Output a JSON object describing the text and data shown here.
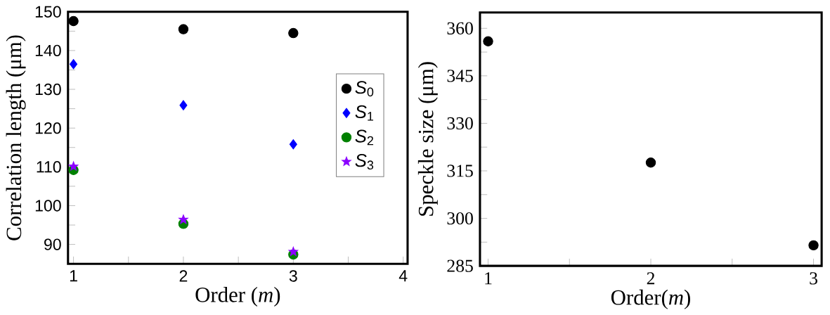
{
  "chart_data": [
    {
      "type": "scatter",
      "xlabel": "Order (*m*)",
      "ylabel": "Correlation length (μm)",
      "x": [
        1,
        2,
        3
      ],
      "xlim": [
        0.95,
        4.04
      ],
      "ylim": [
        85,
        150
      ],
      "xticks": [
        1,
        {
          "value": 1.5,
          "label": null
        },
        2,
        {
          "value": 2.5,
          "label": null
        },
        3,
        {
          "value": 3.5,
          "label": null
        },
        4
      ],
      "yticks": [
        {
          "value": 85,
          "label": null
        },
        90,
        {
          "value": 95,
          "label": null
        },
        100,
        {
          "value": 105,
          "label": null
        },
        110,
        {
          "value": 115,
          "label": null
        },
        120,
        {
          "value": 125,
          "label": null
        },
        130,
        {
          "value": 135,
          "label": null
        },
        140,
        {
          "value": 145,
          "label": null
        },
        150
      ],
      "legend": "right",
      "series": [
        {
          "name": "*S*$_{0}$",
          "color": "#000000",
          "marker": "circle",
          "values": [
            147.6,
            145.5,
            144.5
          ]
        },
        {
          "name": "*S*$_{1}$",
          "color": "#0000ff",
          "marker": "diamond",
          "values": [
            136.5,
            125.9,
            115.8
          ]
        },
        {
          "name": "*S*$_{2}$",
          "color": "#008000",
          "marker": "circle",
          "values": [
            109.2,
            95.3,
            87.4
          ]
        },
        {
          "name": "*S*$_{3}$",
          "color": "#8b00ff",
          "marker": "star",
          "values": [
            110.1,
            96.4,
            88.1
          ]
        }
      ]
    },
    {
      "type": "scatter",
      "xlabel": "Order(*m*)",
      "ylabel": "Speckle size (μm)",
      "x": [
        1,
        2,
        3
      ],
      "xlim": [
        0.95,
        3.05
      ],
      "ylim": [
        285,
        365
      ],
      "xticks": [
        1,
        {
          "value": 1.5,
          "label": null
        },
        2,
        {
          "value": 2.5,
          "label": null
        },
        3
      ],
      "yticks": [
        285,
        {
          "value": 292.5,
          "label": null
        },
        300,
        {
          "value": 307.5,
          "label": null
        },
        315,
        {
          "value": 322.5,
          "label": null
        },
        330,
        {
          "value": 337.5,
          "label": null
        },
        345,
        {
          "value": 352.5,
          "label": null
        },
        360
      ],
      "marker": "circle",
      "series": [
        {
          "color": "#000000",
          "values": [
            355.9,
            317.6,
            291.5
          ]
        }
      ]
    }
  ]
}
